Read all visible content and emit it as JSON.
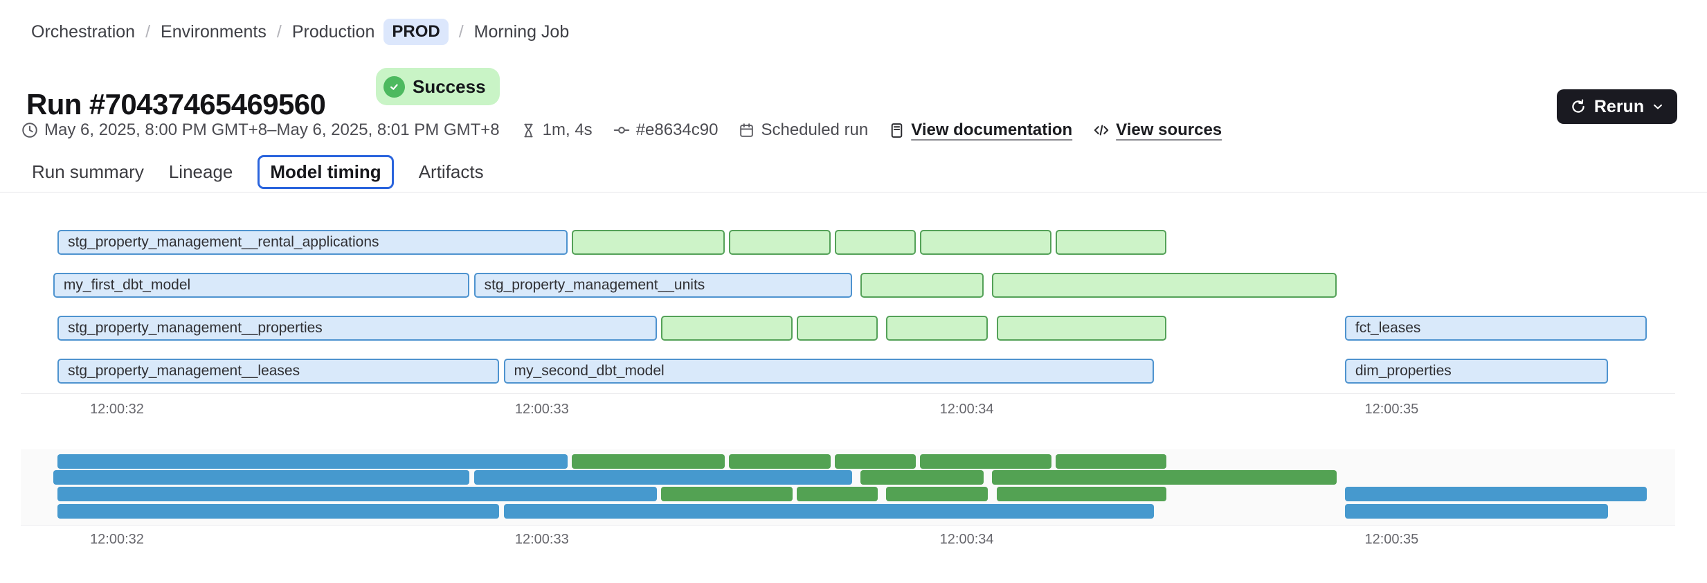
{
  "breadcrumb": {
    "items": [
      "Orchestration",
      "Environments",
      "Production",
      "Morning Job"
    ],
    "separator": "/",
    "env_badge": "PROD"
  },
  "header": {
    "title": "Run #70437465469560",
    "status_badge": "Success",
    "rerun_label": "Rerun"
  },
  "meta": {
    "date_range": "May 6, 2025, 8:00 PM GMT+8–May 6, 2025, 8:01 PM GMT+8",
    "duration": "1m, 4s",
    "commit": "#e8634c90",
    "trigger": "Scheduled run",
    "doc_link": "View documentation",
    "sources_link": "View sources"
  },
  "tabs": {
    "items": [
      "Run summary",
      "Lineage",
      "Model timing",
      "Artifacts"
    ],
    "active": "Model timing"
  },
  "chart_data": {
    "type": "gantt",
    "views": [
      "detailed",
      "overview"
    ],
    "time_prefix": "12:00",
    "axis": {
      "ticks": [
        {
          "t": 32,
          "label": "12:00:32"
        },
        {
          "t": 33,
          "label": "12:00:33"
        },
        {
          "t": 34,
          "label": "12:00:34"
        },
        {
          "t": 35,
          "label": "12:00:35"
        }
      ]
    },
    "colors": {
      "model_fill": "#d9e9fa",
      "model_border": "#4e93cf",
      "test_fill": "#cdf3c8",
      "test_border": "#54a158",
      "overview_model": "#4699ce",
      "overview_test": "#53a253"
    },
    "rows": [
      [
        {
          "kind": "model",
          "label": "stg_property_management__rental_applications",
          "start": 31.86,
          "end": 33.06
        },
        {
          "kind": "test",
          "label": "",
          "start": 33.07,
          "end": 33.43
        },
        {
          "kind": "test",
          "label": "",
          "start": 33.44,
          "end": 33.68
        },
        {
          "kind": "test",
          "label": "",
          "start": 33.69,
          "end": 33.88
        },
        {
          "kind": "test",
          "label": "",
          "start": 33.89,
          "end": 34.2
        },
        {
          "kind": "test",
          "label": "",
          "start": 34.21,
          "end": 34.47
        }
      ],
      [
        {
          "kind": "model",
          "label": "my_first_dbt_model",
          "start": 31.85,
          "end": 32.83
        },
        {
          "kind": "model",
          "label": "stg_property_management__units",
          "start": 32.84,
          "end": 33.73
        },
        {
          "kind": "test",
          "label": "",
          "start": 33.75,
          "end": 34.04
        },
        {
          "kind": "test",
          "label": "",
          "start": 34.06,
          "end": 34.87
        }
      ],
      [
        {
          "kind": "model",
          "label": "stg_property_management__properties",
          "start": 31.86,
          "end": 33.27
        },
        {
          "kind": "test",
          "label": "",
          "start": 33.28,
          "end": 33.59
        },
        {
          "kind": "test",
          "label": "",
          "start": 33.6,
          "end": 33.79
        },
        {
          "kind": "test",
          "label": "",
          "start": 33.81,
          "end": 34.05
        },
        {
          "kind": "test",
          "label": "",
          "start": 34.07,
          "end": 34.47
        },
        {
          "kind": "model",
          "label": "fct_leases",
          "start": 34.89,
          "end": 35.6
        }
      ],
      [
        {
          "kind": "model",
          "label": "stg_property_management__leases",
          "start": 31.86,
          "end": 32.9
        },
        {
          "kind": "model",
          "label": "my_second_dbt_model",
          "start": 32.91,
          "end": 34.44
        },
        {
          "kind": "model",
          "label": "dim_properties",
          "start": 34.89,
          "end": 35.51
        }
      ]
    ]
  }
}
